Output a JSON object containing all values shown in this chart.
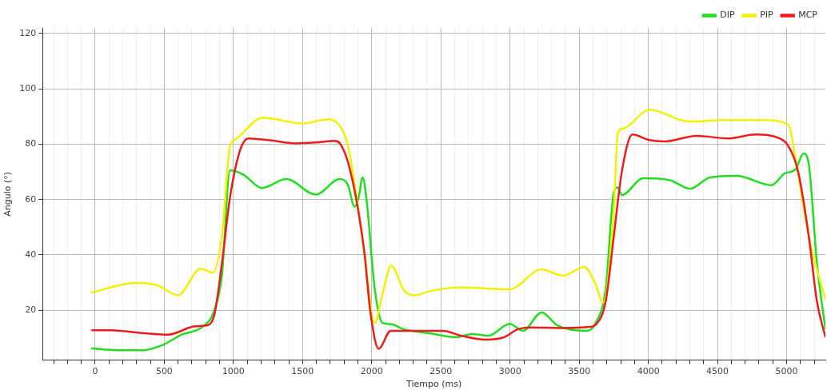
{
  "chart_data": {
    "type": "line",
    "xlabel": "Tiempo (ms)",
    "ylabel": "Angulo (°)",
    "xlim": [
      -380,
      5280
    ],
    "ylim": [
      2,
      122
    ],
    "xticks": [
      {
        "value": -300,
        "label": null
      },
      {
        "value": -200,
        "label": null
      },
      {
        "value": -100,
        "label": null
      },
      0,
      {
        "value": 100,
        "label": null
      },
      {
        "value": 200,
        "label": null
      },
      {
        "value": 300,
        "label": null
      },
      {
        "value": 400,
        "label": null
      },
      500,
      {
        "value": 600,
        "label": null
      },
      {
        "value": 700,
        "label": null
      },
      {
        "value": 800,
        "label": null
      },
      {
        "value": 900,
        "label": null
      },
      1000,
      {
        "value": 1100,
        "label": null
      },
      {
        "value": 1200,
        "label": null
      },
      {
        "value": 1300,
        "label": null
      },
      {
        "value": 1400,
        "label": null
      },
      1500,
      {
        "value": 1600,
        "label": null
      },
      {
        "value": 1700,
        "label": null
      },
      {
        "value": 1800,
        "label": null
      },
      {
        "value": 1900,
        "label": null
      },
      2000,
      {
        "value": 2100,
        "label": null
      },
      {
        "value": 2200,
        "label": null
      },
      {
        "value": 2300,
        "label": null
      },
      {
        "value": 2400,
        "label": null
      },
      2500,
      {
        "value": 2600,
        "label": null
      },
      {
        "value": 2700,
        "label": null
      },
      {
        "value": 2800,
        "label": null
      },
      {
        "value": 2900,
        "label": null
      },
      3000,
      {
        "value": 3100,
        "label": null
      },
      {
        "value": 3200,
        "label": null
      },
      {
        "value": 3300,
        "label": null
      },
      {
        "value": 3400,
        "label": null
      },
      3500,
      {
        "value": 3600,
        "label": null
      },
      {
        "value": 3700,
        "label": null
      },
      {
        "value": 3800,
        "label": null
      },
      {
        "value": 3900,
        "label": null
      },
      4000,
      {
        "value": 4100,
        "label": null
      },
      {
        "value": 4200,
        "label": null
      },
      {
        "value": 4300,
        "label": null
      },
      {
        "value": 4400,
        "label": null
      },
      4500,
      {
        "value": 4600,
        "label": null
      },
      {
        "value": 4700,
        "label": null
      },
      {
        "value": 4800,
        "label": null
      },
      {
        "value": 4900,
        "label": null
      },
      5000,
      {
        "value": 5100,
        "label": null
      },
      {
        "value": 5200,
        "label": null
      }
    ],
    "yticks": [
      20,
      40,
      60,
      80,
      100,
      120
    ],
    "grid": true,
    "legend": "top right",
    "marker": "none",
    "line_style": "solid",
    "series": [
      {
        "name": "DIP",
        "color": "#22dd22",
        "x": [
          -27,
          160,
          355,
          490,
          626,
          781,
          859,
          917,
          975,
          1072,
          1207,
          1382,
          1595,
          1769,
          1828,
          1876,
          1905,
          1934,
          1963,
          2021,
          2079,
          2137,
          2234,
          2417,
          2610,
          2726,
          2842,
          2997,
          3093,
          3228,
          3344,
          3556,
          3614,
          3692,
          3750,
          3779,
          3808,
          3962,
          4156,
          4301,
          4446,
          4639,
          4890,
          4987,
          5064,
          5122,
          5160,
          5218,
          5280
        ],
        "values": [
          6.3,
          5.6,
          5.6,
          7.5,
          11.2,
          14.2,
          19.6,
          32.7,
          70.5,
          69,
          64.2,
          67.4,
          61.8,
          67.4,
          65.3,
          57.4,
          60.7,
          68,
          59.7,
          28,
          15.4,
          15,
          13.1,
          11.7,
          10.3,
          11.4,
          10.8,
          15.1,
          12.6,
          19.2,
          14.5,
          12.6,
          15,
          28,
          62.5,
          64.4,
          61.6,
          67.7,
          67,
          63.9,
          68,
          68.6,
          65.2,
          69.5,
          70.9,
          76.7,
          72.8,
          37.4,
          13.1
        ]
      },
      {
        "name": "PIP",
        "color": "#f2f200",
        "x": [
          -27,
          297,
          452,
          600,
          762,
          849,
          917,
          975,
          1014,
          1213,
          1502,
          1683,
          1810,
          1847,
          1944,
          2021,
          2079,
          2141,
          2234,
          2312,
          2417,
          2649,
          2997,
          3228,
          3383,
          3537,
          3614,
          3673,
          3750,
          3779,
          3819,
          4011,
          4290,
          4543,
          4833,
          5014,
          5064,
          5160,
          5280
        ],
        "values": [
          26.4,
          29.9,
          29,
          25.4,
          35,
          33.6,
          46.7,
          79.3,
          81.7,
          89.6,
          87.5,
          89,
          82.6,
          74.7,
          42,
          15.4,
          26.2,
          36.2,
          27.1,
          25.4,
          26.9,
          28.2,
          27.6,
          34.8,
          32.5,
          35.7,
          29.9,
          22.9,
          56,
          84,
          85.7,
          92.5,
          88.2,
          88.7,
          88.7,
          87,
          74.7,
          46.7,
          23.8
        ]
      },
      {
        "name": "MCP",
        "color": "#ee1c1c",
        "x": [
          -27,
          122,
          297,
          529,
          723,
          800,
          859,
          917,
          975,
          1052,
          1110,
          1265,
          1450,
          1614,
          1731,
          1770,
          1847,
          1944,
          1992,
          2050,
          2137,
          2331,
          2514,
          2649,
          2823,
          2958,
          3054,
          3151,
          3383,
          3576,
          3624,
          3692,
          3750,
          3808,
          3885,
          4001,
          4117,
          4349,
          4581,
          4774,
          4948,
          5006,
          5083,
          5160,
          5218,
          5280
        ],
        "values": [
          12.8,
          12.8,
          12,
          11.2,
          14.2,
          14.5,
          17.8,
          37,
          60.7,
          78.4,
          82.1,
          81.4,
          80.3,
          80.7,
          81.2,
          80.3,
          70,
          42,
          18.7,
          6.1,
          12.6,
          12.6,
          12.6,
          10.8,
          9.4,
          10.3,
          13.1,
          13.8,
          13.6,
          14,
          15,
          23.4,
          46.7,
          70,
          83.5,
          81.6,
          81,
          83,
          82.1,
          83.5,
          82.1,
          79.8,
          70,
          46.7,
          23.4,
          10.3
        ]
      }
    ]
  }
}
